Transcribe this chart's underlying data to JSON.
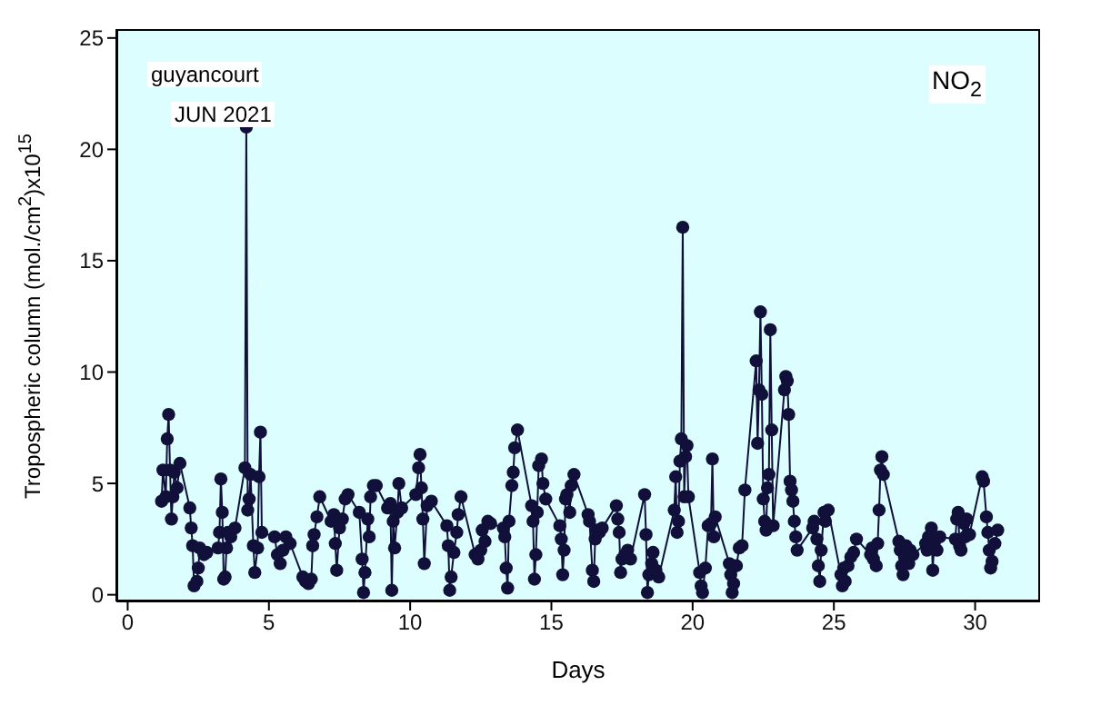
{
  "chart_data": {
    "type": "line",
    "xlabel": "Days",
    "ylabel": "Tropospheric column (mol./cm$^{2}$)x10$^{15}$",
    "annotations": [
      "guyancourt",
      "JUN 2021",
      "NO$_{2}$"
    ],
    "xlim": [
      -0.4,
      32.3
    ],
    "xticks": [
      0,
      5,
      10,
      15,
      20,
      25,
      30
    ],
    "ylim": [
      -0.3,
      25.4
    ],
    "yticks": [
      0,
      5,
      10,
      15,
      20,
      25
    ],
    "grid": false,
    "marker": "circle",
    "line_style": "solid",
    "series": [
      {
        "color": "#10103a",
        "x": [
          1.2,
          1.25,
          1.35,
          1.4,
          1.45,
          1.5,
          1.55,
          1.6,
          1.65,
          1.75,
          1.85,
          2.2,
          2.25,
          2.3,
          2.35,
          2.45,
          2.5,
          2.55,
          2.7,
          2.8,
          3.2,
          3.25,
          3.3,
          3.35,
          3.4,
          3.45,
          3.5,
          3.55,
          3.65,
          3.8,
          4.15,
          4.2,
          4.25,
          4.3,
          4.35,
          4.45,
          4.5,
          4.6,
          4.65,
          4.7,
          4.75,
          5.2,
          5.3,
          5.4,
          5.5,
          5.6,
          5.75,
          6.2,
          6.3,
          6.4,
          6.5,
          6.55,
          6.6,
          6.7,
          6.8,
          7.2,
          7.3,
          7.35,
          7.4,
          7.5,
          7.6,
          7.7,
          7.8,
          8.2,
          8.3,
          8.35,
          8.4,
          8.5,
          8.55,
          8.6,
          8.7,
          8.8,
          9.2,
          9.3,
          9.35,
          9.4,
          9.45,
          9.55,
          9.6,
          9.7,
          10.2,
          10.3,
          10.35,
          10.4,
          10.45,
          10.5,
          10.6,
          10.75,
          11.3,
          11.35,
          11.4,
          11.45,
          11.55,
          11.65,
          11.7,
          11.8,
          12.3,
          12.4,
          12.5,
          12.55,
          12.65,
          12.75,
          12.85,
          13.3,
          13.35,
          13.4,
          13.45,
          13.5,
          13.6,
          13.65,
          13.7,
          13.8,
          14.3,
          14.35,
          14.4,
          14.45,
          14.5,
          14.55,
          14.65,
          14.7,
          14.8,
          15.3,
          15.35,
          15.4,
          15.45,
          15.5,
          15.55,
          15.65,
          15.7,
          15.8,
          16.3,
          16.35,
          16.45,
          16.5,
          16.55,
          16.6,
          16.7,
          16.8,
          17.3,
          17.35,
          17.4,
          17.45,
          17.5,
          17.6,
          17.7,
          17.8,
          18.3,
          18.35,
          18.4,
          18.45,
          18.55,
          18.6,
          18.7,
          18.8,
          19.35,
          19.4,
          19.45,
          19.5,
          19.55,
          19.6,
          19.65,
          19.7,
          19.75,
          19.8,
          19.85,
          20.25,
          20.3,
          20.35,
          20.45,
          20.55,
          20.65,
          20.7,
          20.75,
          20.8,
          21.3,
          21.35,
          21.4,
          21.45,
          21.55,
          21.65,
          21.75,
          21.85,
          22.25,
          22.3,
          22.35,
          22.4,
          22.45,
          22.5,
          22.55,
          22.6,
          22.65,
          22.7,
          22.75,
          22.8,
          22.85,
          23.25,
          23.3,
          23.35,
          23.4,
          23.45,
          23.5,
          23.55,
          23.6,
          23.65,
          23.7,
          24.25,
          24.3,
          24.4,
          24.45,
          24.5,
          24.55,
          24.65,
          24.7,
          24.8,
          25.25,
          25.3,
          25.35,
          25.4,
          25.5,
          25.6,
          25.7,
          25.8,
          26.3,
          26.35,
          26.4,
          26.5,
          26.55,
          26.6,
          26.65,
          26.7,
          26.75,
          27.3,
          27.35,
          27.4,
          27.45,
          27.5,
          27.55,
          27.65,
          27.7,
          27.8,
          28.25,
          28.3,
          28.35,
          28.45,
          28.5,
          28.55,
          28.65,
          28.75,
          29.3,
          29.35,
          29.4,
          29.45,
          29.5,
          29.6,
          29.65,
          29.7,
          29.8,
          30.25,
          30.3,
          30.4,
          30.45,
          30.5,
          30.55,
          30.6,
          30.7,
          30.8
        ],
        "values": [
          4.2,
          5.6,
          4.4,
          7.0,
          8.1,
          5.6,
          3.4,
          4.4,
          5.5,
          4.8,
          5.9,
          3.9,
          3.0,
          2.2,
          0.4,
          0.6,
          1.2,
          2.1,
          1.8,
          1.9,
          2.1,
          2.8,
          5.2,
          3.7,
          0.7,
          0.8,
          2.1,
          2.8,
          2.6,
          3.0,
          5.7,
          21.0,
          3.8,
          4.3,
          5.4,
          2.2,
          1.0,
          2.1,
          5.3,
          7.3,
          2.8,
          2.6,
          1.8,
          1.4,
          2.0,
          2.6,
          2.3,
          0.8,
          0.6,
          0.5,
          0.7,
          2.2,
          2.7,
          3.5,
          4.4,
          3.3,
          3.6,
          2.3,
          1.1,
          3.0,
          3.4,
          4.3,
          4.5,
          3.7,
          1.6,
          0.1,
          1.0,
          3.4,
          2.6,
          4.4,
          4.9,
          4.9,
          3.9,
          4.1,
          0.2,
          3.3,
          2.1,
          3.7,
          5.0,
          3.9,
          4.5,
          5.7,
          6.3,
          4.8,
          3.4,
          1.4,
          4.0,
          4.2,
          3.1,
          2.2,
          0.2,
          0.8,
          1.9,
          2.8,
          3.6,
          4.4,
          1.8,
          1.6,
          2.0,
          2.9,
          2.4,
          3.3,
          3.2,
          3.0,
          2.6,
          1.2,
          0.3,
          3.3,
          4.9,
          5.5,
          6.6,
          7.4,
          4.0,
          3.3,
          0.7,
          1.8,
          3.7,
          5.8,
          6.1,
          5.0,
          4.3,
          3.1,
          2.5,
          0.9,
          2.0,
          4.3,
          4.5,
          3.7,
          4.9,
          5.4,
          3.6,
          3.3,
          1.1,
          0.6,
          2.5,
          2.9,
          2.8,
          3.0,
          4.0,
          3.4,
          2.8,
          1.0,
          1.6,
          1.8,
          2.0,
          1.6,
          4.5,
          2.7,
          0.1,
          0.9,
          1.4,
          1.9,
          1.1,
          0.8,
          3.8,
          5.3,
          2.8,
          3.3,
          6.0,
          7.0,
          16.5,
          4.4,
          6.2,
          6.7,
          4.4,
          1.0,
          0.4,
          0.1,
          1.2,
          3.1,
          3.2,
          6.1,
          2.6,
          3.5,
          1.4,
          0.9,
          0.1,
          0.5,
          1.3,
          2.1,
          2.2,
          4.7,
          10.5,
          6.8,
          9.2,
          12.7,
          9.0,
          4.3,
          3.3,
          2.9,
          4.8,
          5.4,
          11.9,
          7.4,
          3.1,
          9.2,
          9.8,
          9.6,
          8.1,
          5.1,
          4.7,
          4.2,
          3.3,
          2.6,
          2.0,
          3.0,
          3.3,
          2.5,
          1.3,
          0.6,
          2.0,
          3.7,
          3.3,
          3.8,
          0.9,
          0.4,
          1.2,
          0.6,
          1.3,
          1.7,
          1.9,
          2.5,
          1.8,
          2.1,
          1.6,
          1.3,
          2.3,
          3.8,
          5.6,
          6.2,
          5.4,
          2.4,
          2.0,
          1.3,
          0.9,
          1.7,
          2.2,
          1.4,
          2.0,
          1.8,
          2.3,
          2.0,
          2.6,
          3.0,
          1.1,
          2.3,
          2.0,
          2.6,
          2.5,
          3.4,
          3.7,
          2.2,
          2.0,
          3.2,
          2.6,
          3.4,
          2.7,
          5.3,
          5.1,
          3.5,
          2.8,
          2.0,
          1.2,
          1.5,
          2.3,
          2.9
        ]
      }
    ]
  }
}
